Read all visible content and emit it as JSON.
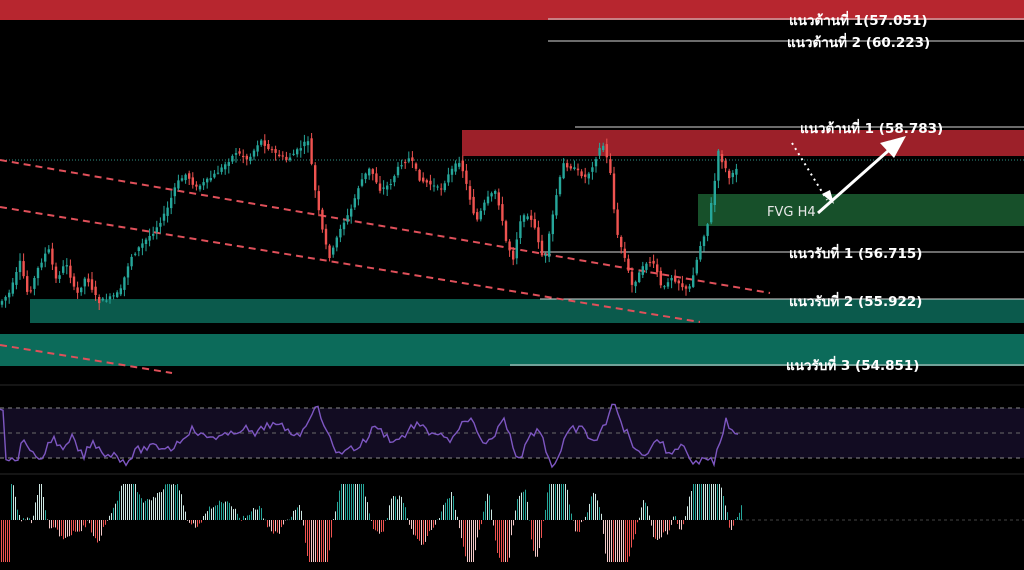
{
  "chart_data": {
    "type": "candlestick",
    "background": "#000000",
    "colors": {
      "up": "#26a69a",
      "down": "#ef5350",
      "resistance_zone": "#b7262f",
      "support_zone": "#0c6b5a",
      "fvg_zone": "#1b5e2a",
      "trendline": "#e0505a",
      "rsi_line": "#7e57c2",
      "level_line": "#d8d8d8",
      "projection_arrow": "#ffffff"
    },
    "levels": [
      {
        "label": "แนวต้านที่ 1(57.051)",
        "value": 57.051,
        "kind": "resistance"
      },
      {
        "label": "แนวต้านที่ 2 (60.223)",
        "value": 60.223,
        "kind": "resistance"
      },
      {
        "label": "แนวต้านที่ 1 (58.783)",
        "value": 58.783,
        "kind": "resistance"
      },
      {
        "label": "แนวรับที่ 1 (56.715)",
        "value": 56.715,
        "kind": "support"
      },
      {
        "label": "แนวรับที่ 2 (55.922)",
        "value": 55.922,
        "kind": "support"
      },
      {
        "label": "แนวรับที่ 3  (54.851)",
        "value": 54.851,
        "kind": "support"
      }
    ],
    "zones": [
      {
        "label": "",
        "kind": "resistance"
      },
      {
        "label": "",
        "kind": "resistance"
      },
      {
        "label": "FVG H4",
        "kind": "fvg"
      },
      {
        "label": "",
        "kind": "support"
      },
      {
        "label": "",
        "kind": "support"
      }
    ],
    "indicators": [
      {
        "type": "rsi_line"
      },
      {
        "type": "histogram"
      }
    ]
  }
}
